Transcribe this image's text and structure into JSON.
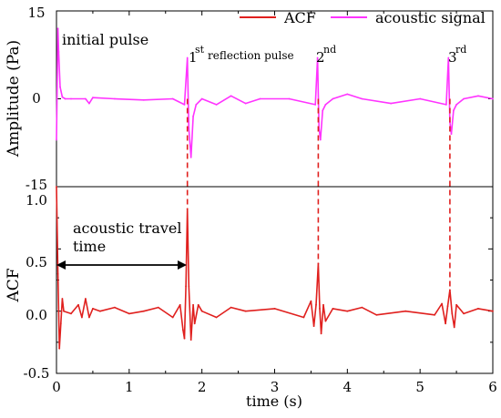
{
  "chart_data": [
    {
      "type": "line",
      "panel": "top",
      "xlim": [
        0,
        6
      ],
      "ylim": [
        -15,
        15
      ],
      "ylabel": "Amplitude (Pa)",
      "yticks": [
        "15",
        "0",
        "-15"
      ],
      "grid": false,
      "legend_position": "top-right",
      "legend": [
        {
          "label": "ACF",
          "color": "#e0201e"
        },
        {
          "label": "acoustic signal",
          "color": "#ff33ff"
        }
      ],
      "series": [
        {
          "name": "acoustic signal",
          "color": "#ff33ff",
          "x": [
            0.0,
            0.02,
            0.03,
            0.05,
            0.08,
            0.12,
            0.2,
            0.4,
            0.45,
            0.5,
            0.8,
            1.2,
            1.6,
            1.76,
            1.8,
            1.82,
            1.85,
            1.88,
            1.92,
            2.0,
            2.2,
            2.4,
            2.6,
            2.8,
            3.2,
            3.56,
            3.59,
            3.61,
            3.63,
            3.66,
            3.7,
            3.8,
            4.0,
            4.2,
            4.6,
            5.0,
            5.36,
            5.39,
            5.41,
            5.43,
            5.46,
            5.5,
            5.6,
            5.8,
            6.0
          ],
          "y": [
            -7,
            12,
            8,
            2,
            0.3,
            0,
            0,
            0,
            -0.8,
            0.2,
            0,
            -0.2,
            0,
            -1,
            7,
            -5,
            -10,
            -3,
            -1,
            0,
            -1,
            0.5,
            -0.8,
            0,
            0,
            -1,
            7,
            -5,
            -7,
            -2,
            -1,
            0,
            0.8,
            0,
            -0.8,
            0,
            -1,
            7,
            -4,
            -6,
            -2,
            -1,
            0,
            0.5,
            0
          ]
        }
      ],
      "annotations": [
        "initial pulse",
        "1",
        "st",
        "reflection pulse",
        "2",
        "nd",
        "3",
        "rd"
      ]
    },
    {
      "type": "line",
      "panel": "bottom",
      "xlim": [
        0,
        6
      ],
      "ylim": [
        -0.5,
        1.0
      ],
      "xlabel": "time (s)",
      "ylabel": "ACF",
      "xticks": [
        "0",
        "1",
        "2",
        "3",
        "4",
        "5",
        "6"
      ],
      "yticks": [
        "1.0",
        "0.5",
        "0.0",
        "-0.5"
      ],
      "grid": false,
      "series": [
        {
          "name": "ACF",
          "color": "#e0201e",
          "x": [
            0.0,
            0.02,
            0.04,
            0.06,
            0.08,
            0.1,
            0.2,
            0.3,
            0.35,
            0.4,
            0.45,
            0.5,
            0.6,
            0.8,
            1.0,
            1.2,
            1.4,
            1.6,
            1.7,
            1.74,
            1.76,
            1.78,
            1.8,
            1.82,
            1.85,
            1.88,
            1.9,
            1.95,
            2.0,
            2.2,
            2.4,
            2.6,
            3.0,
            3.4,
            3.5,
            3.54,
            3.57,
            3.6,
            3.62,
            3.64,
            3.67,
            3.7,
            3.8,
            4.0,
            4.2,
            4.4,
            4.8,
            5.2,
            5.3,
            5.35,
            5.38,
            5.41,
            5.44,
            5.47,
            5.5,
            5.6,
            5.8,
            6.0
          ],
          "y": [
            1.0,
            0.3,
            -0.3,
            -0.1,
            0.1,
            0.0,
            -0.02,
            0.05,
            -0.05,
            0.1,
            -0.05,
            0.02,
            0.0,
            0.03,
            -0.02,
            0.0,
            0.03,
            -0.05,
            0.05,
            -0.15,
            -0.22,
            0.2,
            0.82,
            0.2,
            -0.23,
            0.05,
            -0.1,
            0.05,
            0.0,
            -0.05,
            0.03,
            0.0,
            0.02,
            -0.05,
            0.08,
            -0.12,
            0.05,
            0.38,
            0.02,
            -0.18,
            0.05,
            -0.08,
            0.02,
            0.0,
            0.03,
            -0.03,
            0.0,
            -0.03,
            0.06,
            -0.1,
            0.04,
            0.17,
            -0.02,
            -0.13,
            0.05,
            -0.02,
            0.02,
            0.0
          ]
        }
      ],
      "dashed_links_x": [
        1.8,
        3.6,
        5.41
      ],
      "annotations": [
        "acoustic travel",
        "time"
      ]
    }
  ]
}
